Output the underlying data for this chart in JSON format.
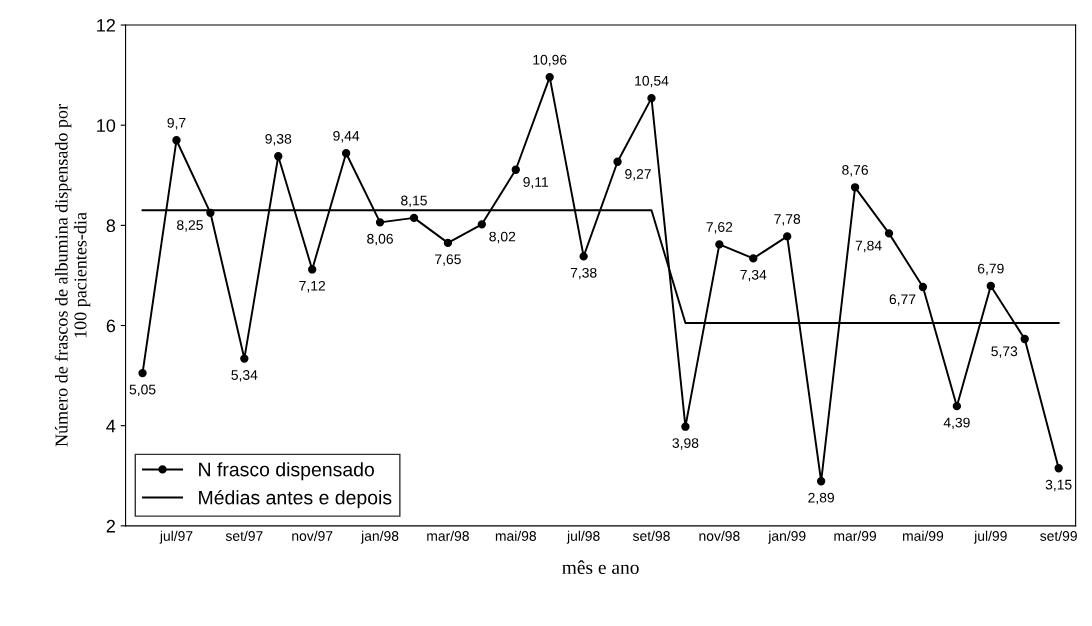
{
  "chart_data": {
    "type": "line",
    "xlabel": "mês e ano",
    "ylabel": "Número de frascos de albumina dispensado por\n100 pacientes-dia",
    "categories": [
      null,
      "jul/97",
      null,
      "set/97",
      null,
      "nov/97",
      null,
      "jan/98",
      null,
      "mar/98",
      null,
      "mai/98",
      null,
      "jul/98",
      null,
      "set/98",
      null,
      "nov/98",
      null,
      "jan/99",
      null,
      "mar/99",
      null,
      "mai/99",
      null,
      "jul/99",
      null,
      "set/99"
    ],
    "series": [
      {
        "name": "N frasco dispensado",
        "color": "#000000",
        "marker": "circle",
        "values": [
          5.05,
          9.7,
          8.25,
          5.34,
          9.38,
          7.12,
          9.44,
          8.06,
          8.15,
          7.65,
          8.02,
          9.11,
          10.96,
          7.38,
          9.27,
          10.54,
          3.98,
          7.62,
          7.34,
          7.78,
          2.89,
          8.76,
          7.84,
          6.77,
          4.39,
          6.79,
          5.73,
          3.15
        ],
        "value_labels": [
          "5,05",
          "9,7",
          "8,25",
          "5,34",
          "9,38",
          "7,12",
          "9,44",
          "8,06",
          "8,15",
          "7,65",
          "8,02",
          "9,11",
          "10,96",
          "7,38",
          "9,27",
          "10,54",
          "3,98",
          "7,62",
          "7,34",
          "7,78",
          "2,89",
          "8,76",
          "7,84",
          "6,77",
          "4,39",
          "6,79",
          "5,73",
          "3,15"
        ]
      },
      {
        "name": "Médias antes e depois",
        "color": "#000000",
        "marker": "none",
        "values": [
          8.3,
          8.3,
          8.3,
          8.3,
          8.3,
          8.3,
          8.3,
          8.3,
          8.3,
          8.3,
          8.3,
          8.3,
          8.3,
          8.3,
          8.3,
          8.3,
          6.05,
          6.05,
          6.05,
          6.05,
          6.05,
          6.05,
          6.05,
          6.05,
          6.05,
          6.05,
          6.05,
          6.05
        ]
      }
    ],
    "ylim": [
      2,
      12
    ],
    "yticks": [
      2,
      4,
      6,
      8,
      10,
      12
    ],
    "grid": false,
    "legend": "bottom left",
    "line_style": "solid"
  }
}
